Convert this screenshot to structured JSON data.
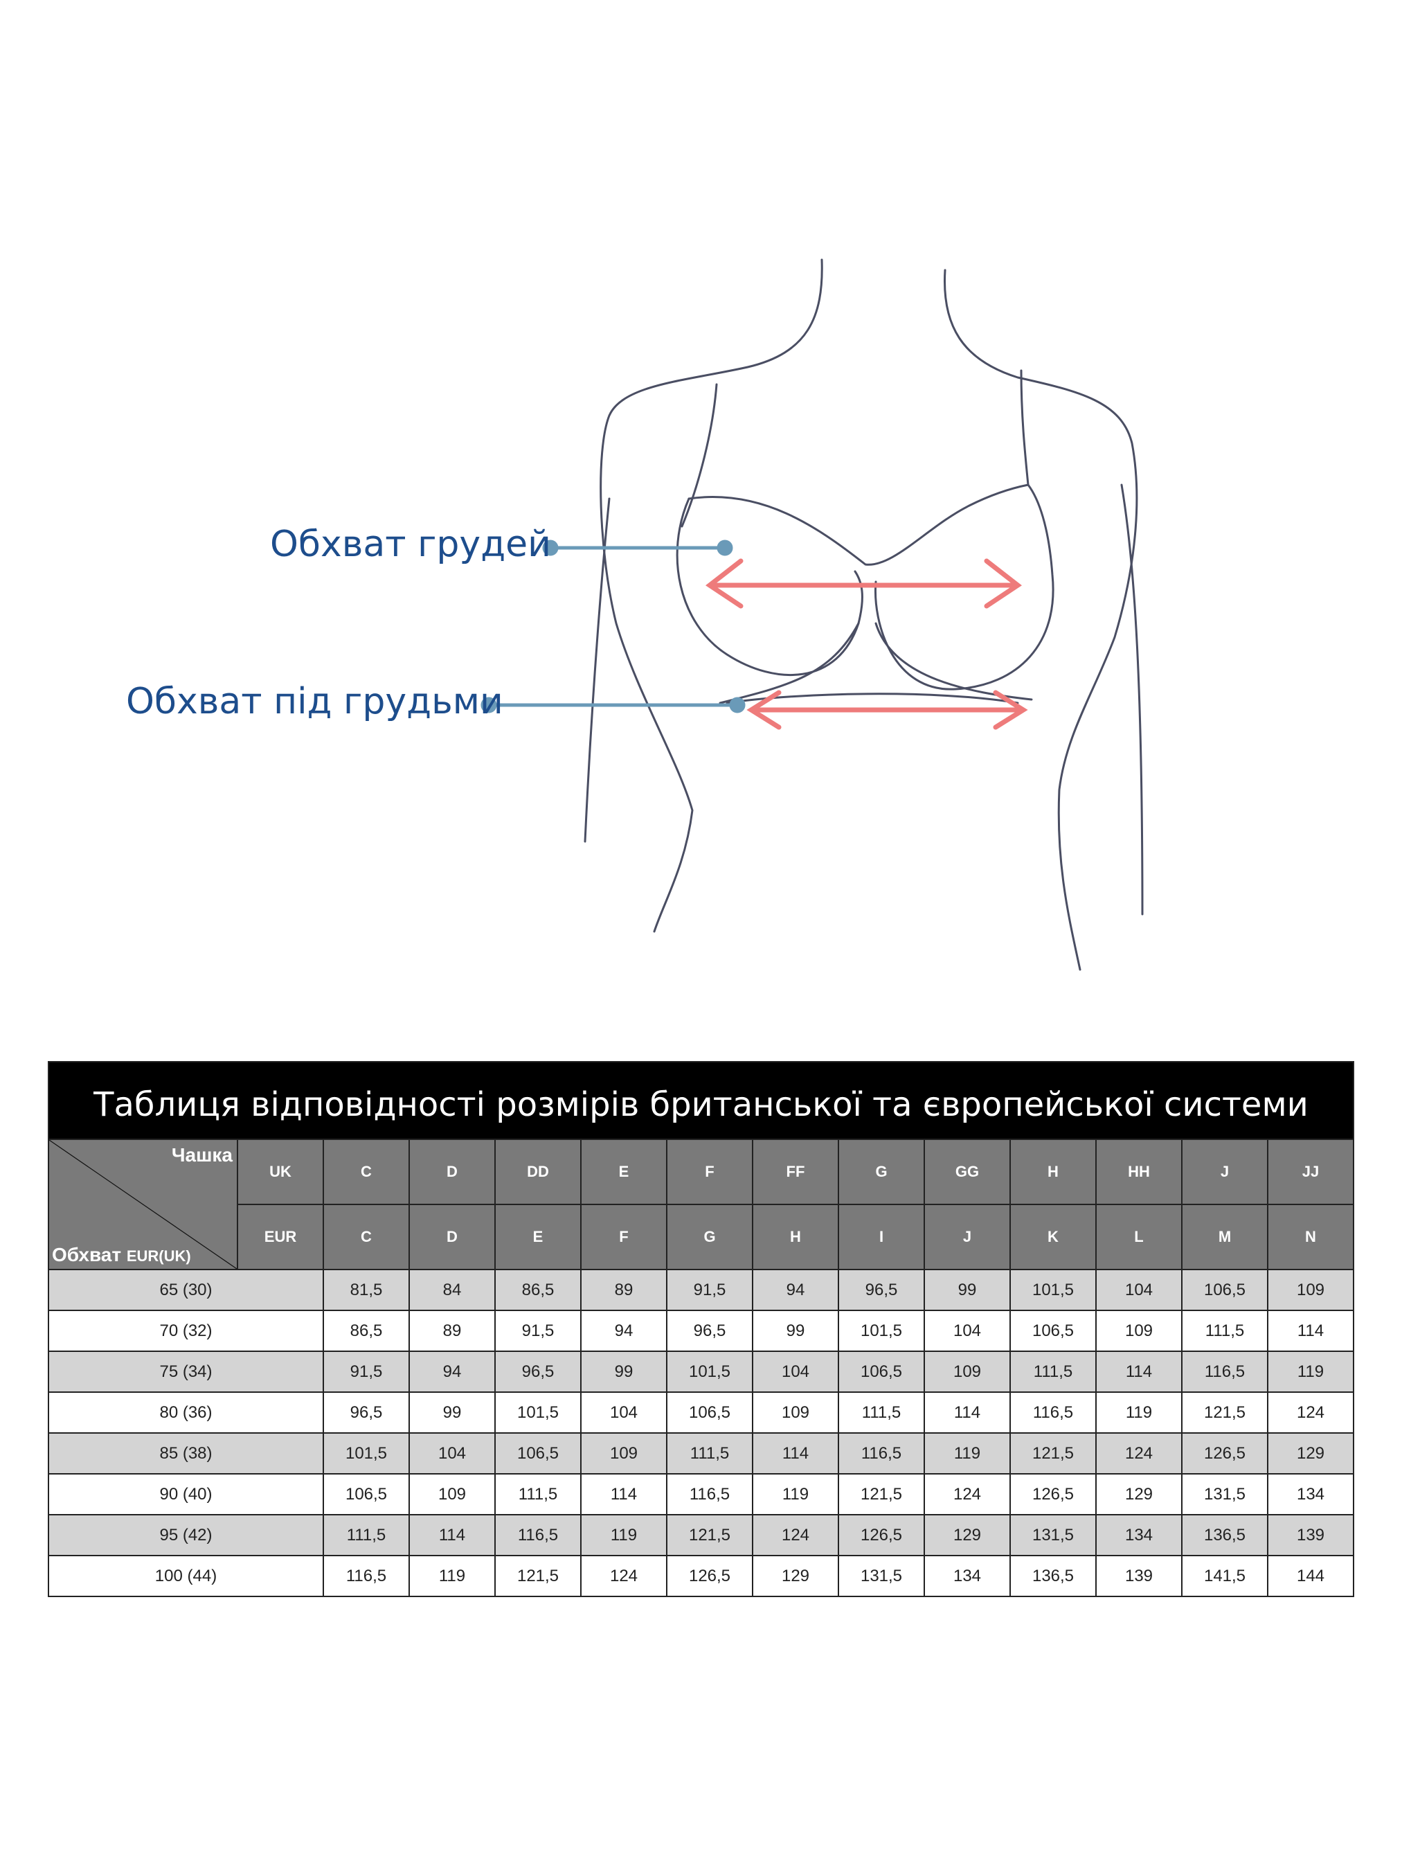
{
  "figure": {
    "labels": {
      "bust": "Обхват грудей",
      "underbust": "Обхват під грудьми"
    },
    "colors": {
      "label": "#1d4d8c",
      "pointer": "#6a9ab8",
      "arrow": "#ee7b7b",
      "outline": "#4a4e63"
    }
  },
  "table": {
    "title": "Таблиця відповідності розмірів британської та європейської системи",
    "corner_cup": "Чашка",
    "corner_girth": "Обхват",
    "corner_girth_suffix": "EUR(UK)",
    "uk_label": "UK",
    "eur_label": "EUR",
    "uk_cups": [
      "C",
      "D",
      "DD",
      "E",
      "F",
      "FF",
      "G",
      "GG",
      "H",
      "HH",
      "J",
      "JJ"
    ],
    "eur_cups": [
      "C",
      "D",
      "E",
      "F",
      "G",
      "H",
      "I",
      "J",
      "K",
      "L",
      "M",
      "N"
    ],
    "rows": [
      {
        "girth": "65 (30)",
        "values": [
          "81,5",
          "84",
          "86,5",
          "89",
          "91,5",
          "94",
          "96,5",
          "99",
          "101,5",
          "104",
          "106,5",
          "109"
        ]
      },
      {
        "girth": "70 (32)",
        "values": [
          "86,5",
          "89",
          "91,5",
          "94",
          "96,5",
          "99",
          "101,5",
          "104",
          "106,5",
          "109",
          "111,5",
          "114"
        ]
      },
      {
        "girth": "75 (34)",
        "values": [
          "91,5",
          "94",
          "96,5",
          "99",
          "101,5",
          "104",
          "106,5",
          "109",
          "111,5",
          "114",
          "116,5",
          "119"
        ]
      },
      {
        "girth": "80 (36)",
        "values": [
          "96,5",
          "99",
          "101,5",
          "104",
          "106,5",
          "109",
          "111,5",
          "114",
          "116,5",
          "119",
          "121,5",
          "124"
        ]
      },
      {
        "girth": "85 (38)",
        "values": [
          "101,5",
          "104",
          "106,5",
          "109",
          "111,5",
          "114",
          "116,5",
          "119",
          "121,5",
          "124",
          "126,5",
          "129"
        ]
      },
      {
        "girth": "90 (40)",
        "values": [
          "106,5",
          "109",
          "111,5",
          "114",
          "116,5",
          "119",
          "121,5",
          "124",
          "126,5",
          "129",
          "131,5",
          "134"
        ]
      },
      {
        "girth": "95 (42)",
        "values": [
          "111,5",
          "114",
          "116,5",
          "119",
          "121,5",
          "124",
          "126,5",
          "129",
          "131,5",
          "134",
          "136,5",
          "139"
        ]
      },
      {
        "girth": "100 (44)",
        "values": [
          "116,5",
          "119",
          "121,5",
          "124",
          "126,5",
          "129",
          "131,5",
          "134",
          "136,5",
          "139",
          "141,5",
          "144"
        ]
      }
    ]
  }
}
